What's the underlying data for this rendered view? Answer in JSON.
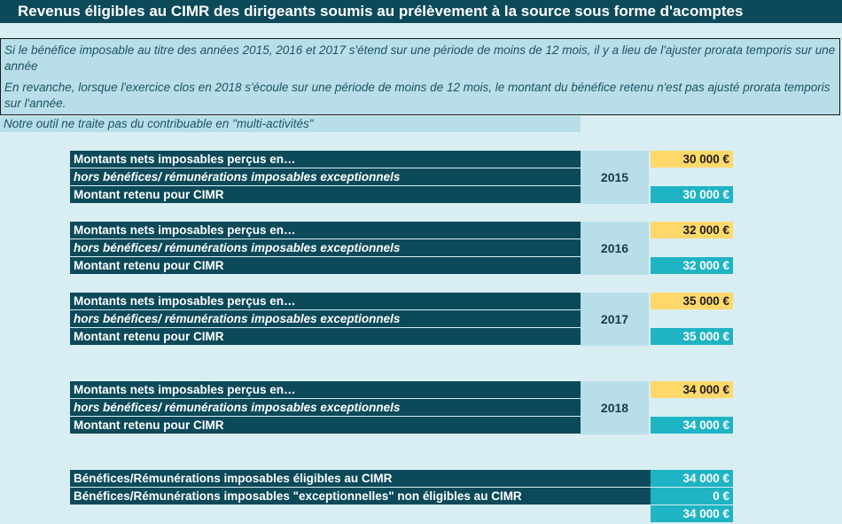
{
  "title": "Revenus éligibles au CIMR des dirigeants soumis au prélèvement à la source sous forme d'acomptes",
  "notes": {
    "p1": "Si le bénéfice imposable au titre des années 2015, 2016 et 2017 s'étend sur une période de moins de 12 mois, il y a lieu de l'ajuster prorata temporis sur une année",
    "p2": "En revanche, lorsque l'exercice clos en 2018 s'écoule sur une période de moins de 12 mois, le montant du bénéfice retenu n'est pas ajusté prorata temporis sur l'année.",
    "p3": "Notre outil ne traite pas du contribuable en \"multi-activités\""
  },
  "labels": {
    "nets": "Montants nets imposables perçus en…",
    "hors": "hors bénéfices/ rémunérations imposables exceptionnels",
    "retenu": "Montant retenu pour CIMR"
  },
  "years": [
    {
      "year": "2015",
      "input": "30 000 €",
      "retenu": "30 000 €"
    },
    {
      "year": "2016",
      "input": "32 000 €",
      "retenu": "32 000 €"
    },
    {
      "year": "2017",
      "input": "35 000 €",
      "retenu": "35 000 €"
    },
    {
      "year": "2018",
      "input": "34 000 €",
      "retenu": "34 000 €"
    }
  ],
  "summary": {
    "eligible_label": "Bénéfices/Rémunérations imposables éligibles au CIMR",
    "eligible_value": "34 000 €",
    "exception_label": "Bénéfices/Rémunérations imposables \"exceptionnelles\" non éligibles au CIMR",
    "exception_value": "0 €",
    "total_value": "34 000 €"
  }
}
